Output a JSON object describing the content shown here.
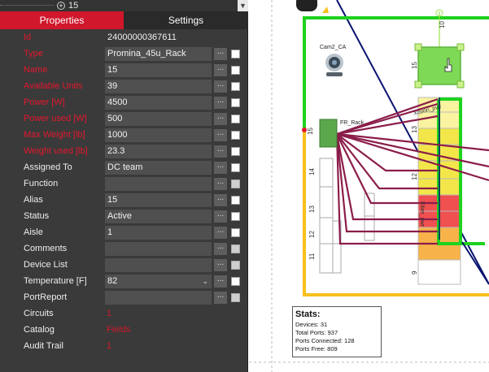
{
  "tree": {
    "node_label": "15"
  },
  "tabs": [
    {
      "label": "Properties",
      "active": true
    },
    {
      "label": "Settings",
      "active": false
    }
  ],
  "properties": [
    {
      "label": "Id",
      "value": "24000000367611",
      "required": true,
      "kind": "readonly"
    },
    {
      "label": "Type",
      "value": "Promina_45u_Rack",
      "required": true,
      "kind": "field"
    },
    {
      "label": "Name",
      "value": "15",
      "required": true,
      "kind": "field"
    },
    {
      "label": "Available Units",
      "value": "39",
      "required": true,
      "kind": "field"
    },
    {
      "label": "Power [W]",
      "value": "4500",
      "required": true,
      "kind": "field"
    },
    {
      "label": "Power used [W]",
      "value": "500",
      "required": true,
      "kind": "field"
    },
    {
      "label": "Max Weight [lb]",
      "value": "1000",
      "required": true,
      "kind": "field"
    },
    {
      "label": "Weight used [lb]",
      "value": "23.3",
      "required": true,
      "kind": "field"
    },
    {
      "label": "Assigned To",
      "value": "DC team",
      "required": false,
      "kind": "field"
    },
    {
      "label": "Function",
      "value": "",
      "required": false,
      "kind": "field",
      "disabled_check": true
    },
    {
      "label": "Alias",
      "value": "15",
      "required": false,
      "kind": "field"
    },
    {
      "label": "Status",
      "value": "Active",
      "required": false,
      "kind": "field"
    },
    {
      "label": "Aisle",
      "value": "1",
      "required": false,
      "kind": "field"
    },
    {
      "label": "Comments",
      "value": "",
      "required": false,
      "kind": "field",
      "disabled_check": true
    },
    {
      "label": "Device List",
      "value": "",
      "required": false,
      "kind": "field",
      "disabled_check": true
    },
    {
      "label": "Temperature [F]",
      "value": "82",
      "required": false,
      "kind": "select"
    },
    {
      "label": "PortReport",
      "value": "",
      "required": false,
      "kind": "field",
      "disabled_check": true
    },
    {
      "label": "Circuits",
      "value": "1",
      "required": false,
      "kind": "link"
    },
    {
      "label": "Catalog",
      "value": "Fields",
      "required": false,
      "kind": "link"
    },
    {
      "label": "Audit Trail",
      "value": "1",
      "required": false,
      "kind": "link"
    }
  ],
  "ellipsis_label": "...",
  "canvas": {
    "camera_label": "Cam2_CA",
    "device_label": "FR_Rack",
    "rack_labels": {
      "top": "10",
      "r15": "15",
      "r14": "14",
      "r13": "13",
      "r12": "12",
      "r11": "11",
      "r9": "9",
      "left15": "15",
      "left14": "14",
      "left13": "13",
      "left12": "12",
      "left11": "11"
    },
    "cable_labels": [
      "Xconn_pwr",
      "Xconn_pwr",
      "Fiber_pwr",
      "Fiber_pwr"
    ],
    "stats": {
      "title": "Stats:",
      "devices": "Devices: 31",
      "total_ports": "Total Ports: 937",
      "ports_connected": "Ports Connected: 128",
      "ports_free": "Ports Free: 809"
    },
    "colors": {
      "green": "#1ed21e",
      "yellow": "#f2e64a",
      "red": "#f05050",
      "orange": "#f7b34a",
      "light_yellow": "#faf3a0",
      "cable": "#8b1d4a",
      "navy": "#0a1470",
      "amber": "#f7c01c"
    }
  }
}
